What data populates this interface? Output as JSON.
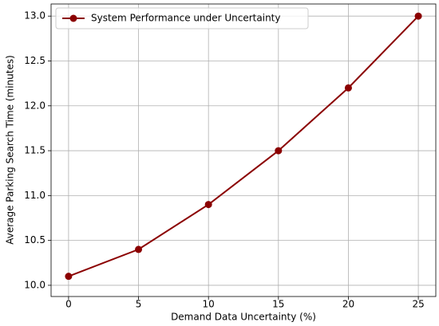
{
  "chart_data": {
    "type": "line",
    "x_label": "Demand Data Uncertainty (%)",
    "y_label": "Average Parking Search Time (minutes)",
    "x": [
      0,
      5,
      10,
      15,
      20,
      25
    ],
    "series": [
      {
        "name": "System Performance under Uncertainty",
        "color": "#8b0000",
        "values": [
          10.1,
          10.4,
          10.9,
          11.5,
          12.2,
          13.0
        ]
      }
    ],
    "xlim": [
      -1.25,
      26.25
    ],
    "xticks": [
      0,
      5,
      10,
      15,
      20,
      25
    ],
    "ylim": [
      9.875,
      13.135
    ],
    "yticks": [
      {
        "value": 10.0,
        "label": "10.0"
      },
      10.5,
      {
        "value": 11.0,
        "label": "11.0"
      },
      11.5,
      {
        "value": 12.0,
        "label": "12.0"
      },
      12.5,
      {
        "value": 13.0,
        "label": "13.0"
      }
    ],
    "grid": true,
    "legend": "upper left"
  }
}
